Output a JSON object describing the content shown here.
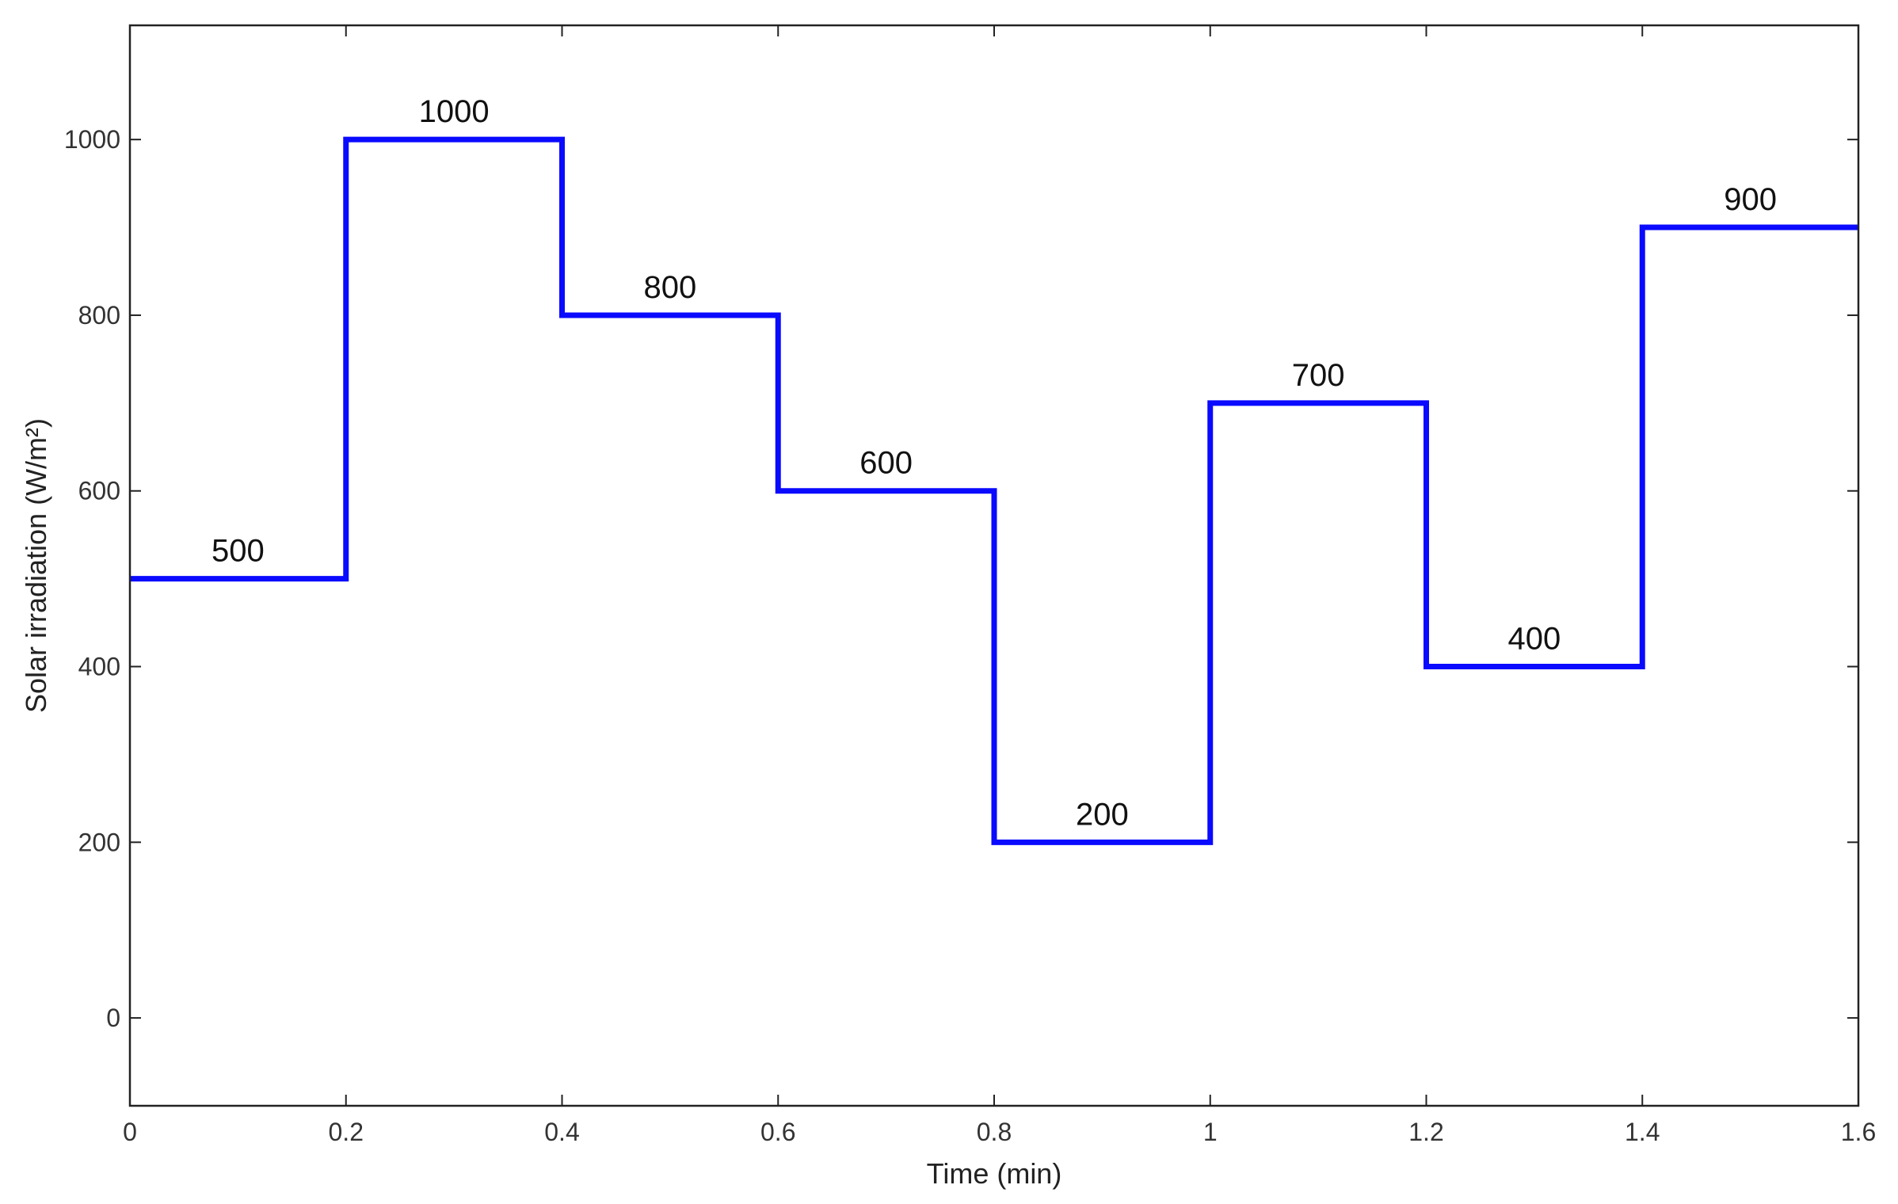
{
  "chart_data": {
    "type": "line",
    "step": true,
    "xlabel": "Time (min)",
    "ylabel": "Solar irradiation (W/m²)",
    "xlim": [
      0,
      1.6
    ],
    "ylim": [
      -100,
      1130
    ],
    "xticks": [
      0,
      0.2,
      0.4,
      0.6,
      0.8,
      1,
      1.2,
      1.4,
      1.6
    ],
    "xtick_labels": [
      "0",
      "0.2",
      "0.4",
      "0.6",
      "0.8",
      "1",
      "1.2",
      "1.4",
      "1.6"
    ],
    "yticks": [
      0,
      200,
      400,
      600,
      800,
      1000
    ],
    "ytick_labels": [
      "0",
      "200",
      "400",
      "600",
      "800",
      "1000"
    ],
    "grid": false,
    "series": [
      {
        "color": "#0a0aff",
        "segments": [
          {
            "x_start": 0,
            "x_end": 0.2,
            "y": 500
          },
          {
            "x_start": 0.2,
            "x_end": 0.4,
            "y": 1000
          },
          {
            "x_start": 0.4,
            "x_end": 0.6,
            "y": 800
          },
          {
            "x_start": 0.6,
            "x_end": 0.8,
            "y": 600
          },
          {
            "x_start": 0.8,
            "x_end": 1.0,
            "y": 200
          },
          {
            "x_start": 1.0,
            "x_end": 1.2,
            "y": 700
          },
          {
            "x_start": 1.2,
            "x_end": 1.4,
            "y": 400
          },
          {
            "x_start": 1.4,
            "x_end": 1.6,
            "y": 900
          }
        ]
      }
    ],
    "annotations": [
      "500",
      "1000",
      "800",
      "600",
      "200",
      "700",
      "400",
      "900"
    ]
  }
}
